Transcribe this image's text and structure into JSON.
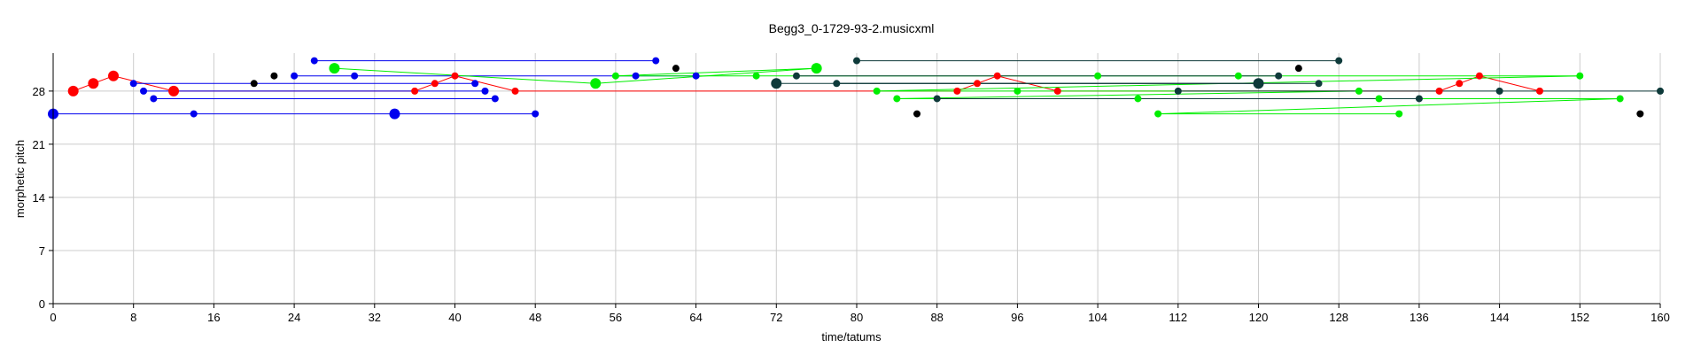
{
  "chart_data": {
    "type": "scatter",
    "title": "Begg3_0-1729-93-2.musicxml",
    "xlabel": "time/tatums",
    "ylabel": "morphetic pitch",
    "xlim": [
      0,
      160
    ],
    "ylim": [
      0,
      33
    ],
    "xticks": [
      0,
      8,
      16,
      24,
      32,
      40,
      48,
      56,
      64,
      72,
      80,
      88,
      96,
      104,
      112,
      120,
      128,
      136,
      144,
      152,
      160
    ],
    "yticks": [
      0,
      7,
      14,
      21,
      28
    ],
    "grid": true,
    "series": [
      {
        "color": "#ff0000",
        "connect": "line",
        "points": [
          {
            "x": 2,
            "y": 28,
            "big": true
          },
          {
            "x": 4,
            "y": 29,
            "big": true
          },
          {
            "x": 6,
            "y": 30,
            "big": true
          },
          {
            "x": 12,
            "y": 28,
            "big": true
          },
          {
            "x": 36,
            "y": 28
          },
          {
            "x": 38,
            "y": 29
          },
          {
            "x": 40,
            "y": 30
          },
          {
            "x": 46,
            "y": 28
          },
          {
            "x": 90,
            "y": 28
          },
          {
            "x": 92,
            "y": 29
          },
          {
            "x": 94,
            "y": 30
          },
          {
            "x": 100,
            "y": 28
          },
          {
            "x": 138,
            "y": 28
          },
          {
            "x": 140,
            "y": 29
          },
          {
            "x": 142,
            "y": 30
          },
          {
            "x": 148,
            "y": 28
          }
        ]
      },
      {
        "color": "#0000ee",
        "connect": "horizontal",
        "points": [
          {
            "x": 0,
            "y": 25,
            "big": true
          },
          {
            "x": 14,
            "y": 25
          },
          {
            "x": 34,
            "y": 25,
            "big": true
          },
          {
            "x": 48,
            "y": 25
          },
          {
            "x": 8,
            "y": 29
          },
          {
            "x": 42,
            "y": 29
          },
          {
            "x": 9,
            "y": 28
          },
          {
            "x": 43,
            "y": 28
          },
          {
            "x": 10,
            "y": 27
          },
          {
            "x": 44,
            "y": 27
          },
          {
            "x": 24,
            "y": 30
          },
          {
            "x": 30,
            "y": 30
          },
          {
            "x": 58,
            "y": 30
          },
          {
            "x": 64,
            "y": 30
          },
          {
            "x": 26,
            "y": 32
          },
          {
            "x": 60,
            "y": 32
          }
        ]
      },
      {
        "color": "#000000",
        "connect": "none",
        "points": [
          {
            "x": 20,
            "y": 29
          },
          {
            "x": 22,
            "y": 30
          },
          {
            "x": 62,
            "y": 31
          },
          {
            "x": 86,
            "y": 25
          },
          {
            "x": 124,
            "y": 31
          },
          {
            "x": 158,
            "y": 25
          }
        ]
      },
      {
        "color": "#00ee00",
        "connect": "line",
        "points": [
          {
            "x": 28,
            "y": 31,
            "big": true
          },
          {
            "x": 54,
            "y": 29,
            "big": true
          },
          {
            "x": 76,
            "y": 31,
            "big": true
          },
          {
            "x": 56,
            "y": 30
          },
          {
            "x": 70,
            "y": 30
          },
          {
            "x": 104,
            "y": 30
          },
          {
            "x": 118,
            "y": 30
          },
          {
            "x": 152,
            "y": 30
          },
          {
            "x": 82,
            "y": 28
          },
          {
            "x": 96,
            "y": 28
          },
          {
            "x": 130,
            "y": 28
          },
          {
            "x": 84,
            "y": 27
          },
          {
            "x": 108,
            "y": 27
          },
          {
            "x": 132,
            "y": 27
          },
          {
            "x": 156,
            "y": 27
          },
          {
            "x": 110,
            "y": 25
          },
          {
            "x": 134,
            "y": 25
          }
        ]
      },
      {
        "color": "#0e3a3a",
        "connect": "horizontal",
        "points": [
          {
            "x": 72,
            "y": 29,
            "big": true
          },
          {
            "x": 120,
            "y": 29,
            "big": true
          },
          {
            "x": 74,
            "y": 30
          },
          {
            "x": 122,
            "y": 30
          },
          {
            "x": 78,
            "y": 29
          },
          {
            "x": 126,
            "y": 29
          },
          {
            "x": 80,
            "y": 32
          },
          {
            "x": 128,
            "y": 32
          },
          {
            "x": 88,
            "y": 27
          },
          {
            "x": 136,
            "y": 27
          },
          {
            "x": 112,
            "y": 28
          },
          {
            "x": 144,
            "y": 28
          },
          {
            "x": 160,
            "y": 28
          }
        ]
      }
    ]
  }
}
